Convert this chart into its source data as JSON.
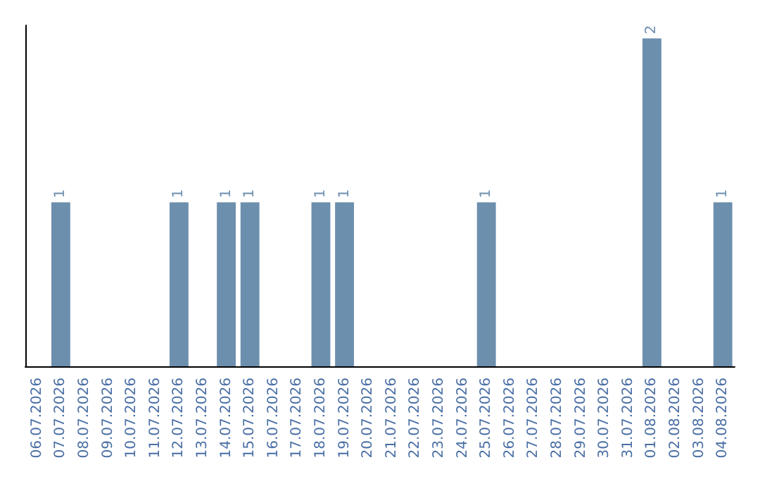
{
  "chart_data": {
    "type": "bar",
    "categories": [
      "06.07.2026",
      "07.07.2026",
      "08.07.2026",
      "09.07.2026",
      "10.07.2026",
      "11.07.2026",
      "12.07.2026",
      "13.07.2026",
      "14.07.2026",
      "15.07.2026",
      "16.07.2026",
      "17.07.2026",
      "18.07.2026",
      "19.07.2026",
      "20.07.2026",
      "21.07.2026",
      "22.07.2026",
      "23.07.2026",
      "24.07.2026",
      "25.07.2026",
      "26.07.2026",
      "27.07.2026",
      "28.07.2026",
      "29.07.2026",
      "30.07.2026",
      "31.07.2026",
      "01.08.2026",
      "02.08.2026",
      "03.08.2026",
      "04.08.2026"
    ],
    "values": [
      0,
      1,
      0,
      0,
      0,
      0,
      1,
      0,
      1,
      1,
      0,
      0,
      1,
      1,
      0,
      0,
      0,
      0,
      0,
      1,
      0,
      0,
      0,
      0,
      0,
      0,
      2,
      0,
      0,
      1
    ],
    "value_labels": [
      null,
      "1",
      null,
      null,
      null,
      null,
      "1",
      null,
      "1",
      "1",
      null,
      null,
      "1",
      "1",
      null,
      null,
      null,
      null,
      null,
      "1",
      null,
      null,
      null,
      null,
      null,
      null,
      "2",
      null,
      null,
      "1"
    ],
    "color": "#6d8fae",
    "ylim": [
      0,
      2.08
    ],
    "tick_labels": "x",
    "grid": false
  }
}
